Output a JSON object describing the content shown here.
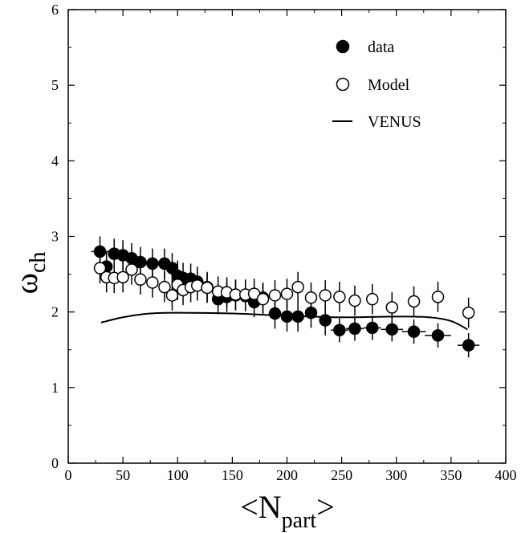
{
  "chart_data": {
    "type": "scatter",
    "xlabel": "<N",
    "xlabel_sub": "part",
    "xlabel_close": ">",
    "ylabel": "ω",
    "ylabel_sub": "ch",
    "xlim": [
      0,
      400
    ],
    "ylim": [
      0,
      6
    ],
    "xticks": [
      0,
      50,
      100,
      150,
      200,
      250,
      300,
      350,
      400
    ],
    "yticks": [
      0,
      1,
      2,
      3,
      4,
      5,
      6
    ],
    "grid": false,
    "legend_position": "top-right",
    "series": [
      {
        "name": "data",
        "marker": "filled-circle",
        "points": [
          {
            "x": 29,
            "y": 2.8,
            "yerr": 0.2,
            "xerr": 8
          },
          {
            "x": 35,
            "y": 2.6,
            "yerr": 0.2,
            "xerr": 0
          },
          {
            "x": 42,
            "y": 2.77,
            "yerr": 0.2,
            "xerr": 0
          },
          {
            "x": 50,
            "y": 2.75,
            "yerr": 0.2,
            "xerr": 0
          },
          {
            "x": 58,
            "y": 2.71,
            "yerr": 0.2,
            "xerr": 0
          },
          {
            "x": 66,
            "y": 2.66,
            "yerr": 0.2,
            "xerr": 0
          },
          {
            "x": 77,
            "y": 2.64,
            "yerr": 0.2,
            "xerr": 0
          },
          {
            "x": 88,
            "y": 2.64,
            "yerr": 0.2,
            "xerr": 0
          },
          {
            "x": 95,
            "y": 2.58,
            "yerr": 0.2,
            "xerr": 0
          },
          {
            "x": 100,
            "y": 2.48,
            "yerr": 0.2,
            "xerr": 0
          },
          {
            "x": 105,
            "y": 2.45,
            "yerr": 0.2,
            "xerr": 0
          },
          {
            "x": 112,
            "y": 2.44,
            "yerr": 0.2,
            "xerr": 0
          },
          {
            "x": 118,
            "y": 2.4,
            "yerr": 0.2,
            "xerr": 0
          },
          {
            "x": 127,
            "y": 2.33,
            "yerr": 0.2,
            "xerr": 0
          },
          {
            "x": 137,
            "y": 2.17,
            "yerr": 0.2,
            "xerr": 0
          },
          {
            "x": 145,
            "y": 2.2,
            "yerr": 0.2,
            "xerr": 0
          },
          {
            "x": 153,
            "y": 2.22,
            "yerr": 0.2,
            "xerr": 0
          },
          {
            "x": 162,
            "y": 2.21,
            "yerr": 0.2,
            "xerr": 0
          },
          {
            "x": 170,
            "y": 2.13,
            "yerr": 0.2,
            "xerr": 0
          },
          {
            "x": 178,
            "y": 2.19,
            "yerr": 0.2,
            "xerr": 0
          },
          {
            "x": 189,
            "y": 1.98,
            "yerr": 0.2,
            "xerr": 0
          },
          {
            "x": 200,
            "y": 1.94,
            "yerr": 0.2,
            "xerr": 0
          },
          {
            "x": 210,
            "y": 1.94,
            "yerr": 0.2,
            "xerr": 0
          },
          {
            "x": 222,
            "y": 1.99,
            "yerr": 0.2,
            "xerr": 0
          },
          {
            "x": 235,
            "y": 1.89,
            "yerr": 0.2,
            "xerr": 0
          },
          {
            "x": 248,
            "y": 1.76,
            "yerr": 0.16,
            "xerr": 8
          },
          {
            "x": 262,
            "y": 1.78,
            "yerr": 0.16,
            "xerr": 8
          },
          {
            "x": 278,
            "y": 1.79,
            "yerr": 0.16,
            "xerr": 8
          },
          {
            "x": 296,
            "y": 1.77,
            "yerr": 0.16,
            "xerr": 10
          },
          {
            "x": 316,
            "y": 1.74,
            "yerr": 0.16,
            "xerr": 11
          },
          {
            "x": 338,
            "y": 1.69,
            "yerr": 0.16,
            "xerr": 12
          },
          {
            "x": 366,
            "y": 1.56,
            "yerr": 0.16,
            "xerr": 10
          }
        ]
      },
      {
        "name": "Model",
        "marker": "open-circle",
        "points": [
          {
            "x": 29,
            "y": 2.58,
            "yerr": 0.2
          },
          {
            "x": 35,
            "y": 2.46,
            "yerr": 0.2
          },
          {
            "x": 42,
            "y": 2.45,
            "yerr": 0.2
          },
          {
            "x": 50,
            "y": 2.46,
            "yerr": 0.2
          },
          {
            "x": 58,
            "y": 2.56,
            "yerr": 0.2
          },
          {
            "x": 66,
            "y": 2.43,
            "yerr": 0.2
          },
          {
            "x": 77,
            "y": 2.39,
            "yerr": 0.2
          },
          {
            "x": 88,
            "y": 2.33,
            "yerr": 0.2
          },
          {
            "x": 95,
            "y": 2.22,
            "yerr": 0.2
          },
          {
            "x": 100,
            "y": 2.36,
            "yerr": 0.2
          },
          {
            "x": 105,
            "y": 2.29,
            "yerr": 0.2
          },
          {
            "x": 112,
            "y": 2.33,
            "yerr": 0.2
          },
          {
            "x": 118,
            "y": 2.35,
            "yerr": 0.2
          },
          {
            "x": 127,
            "y": 2.32,
            "yerr": 0.2
          },
          {
            "x": 137,
            "y": 2.27,
            "yerr": 0.2
          },
          {
            "x": 145,
            "y": 2.26,
            "yerr": 0.2
          },
          {
            "x": 153,
            "y": 2.23,
            "yerr": 0.2
          },
          {
            "x": 162,
            "y": 2.23,
            "yerr": 0.2
          },
          {
            "x": 170,
            "y": 2.24,
            "yerr": 0.2
          },
          {
            "x": 178,
            "y": 2.17,
            "yerr": 0.2
          },
          {
            "x": 189,
            "y": 2.22,
            "yerr": 0.2
          },
          {
            "x": 200,
            "y": 2.24,
            "yerr": 0.2
          },
          {
            "x": 210,
            "y": 2.33,
            "yerr": 0.2
          },
          {
            "x": 222,
            "y": 2.19,
            "yerr": 0.2
          },
          {
            "x": 235,
            "y": 2.22,
            "yerr": 0.2
          },
          {
            "x": 248,
            "y": 2.2,
            "yerr": 0.2
          },
          {
            "x": 262,
            "y": 2.15,
            "yerr": 0.2
          },
          {
            "x": 278,
            "y": 2.17,
            "yerr": 0.2
          },
          {
            "x": 296,
            "y": 2.06,
            "yerr": 0.2
          },
          {
            "x": 316,
            "y": 2.14,
            "yerr": 0.2
          },
          {
            "x": 338,
            "y": 2.2,
            "yerr": 0.2
          },
          {
            "x": 366,
            "y": 1.99,
            "yerr": 0.2
          }
        ]
      },
      {
        "name": "VENUS",
        "marker": "line",
        "points": [
          {
            "x": 30,
            "y": 1.86
          },
          {
            "x": 50,
            "y": 1.93
          },
          {
            "x": 75,
            "y": 1.98
          },
          {
            "x": 100,
            "y": 1.99
          },
          {
            "x": 150,
            "y": 1.98
          },
          {
            "x": 200,
            "y": 1.95
          },
          {
            "x": 250,
            "y": 1.93
          },
          {
            "x": 300,
            "y": 1.94
          },
          {
            "x": 330,
            "y": 1.93
          },
          {
            "x": 350,
            "y": 1.88
          },
          {
            "x": 365,
            "y": 1.77
          }
        ]
      }
    ]
  }
}
